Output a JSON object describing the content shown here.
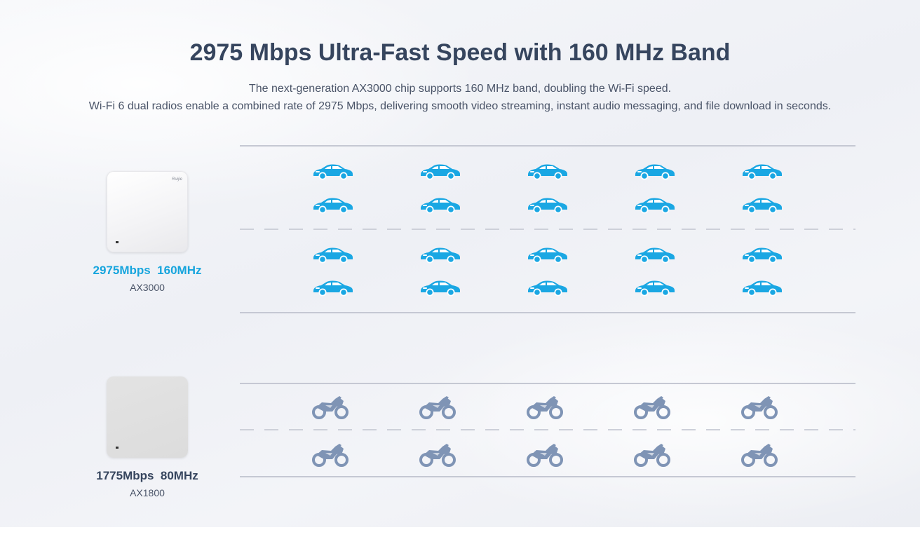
{
  "header": {
    "title": "2975 Mbps Ultra-Fast Speed with 160 MHz Band",
    "subtitle_line1": "The next-generation AX3000 chip supports 160 MHz band, doubling the Wi-Fi speed.",
    "subtitle_line2": "Wi-Fi 6 dual radios enable a combined rate of 2975 Mbps, delivering smooth video streaming, instant audio messaging, and file download in seconds."
  },
  "ax3000": {
    "spec": "2975Mbps  160MHz",
    "model": "AX3000",
    "brand_label": "Ruijie",
    "vehicle": "car-icon",
    "rows": 4,
    "vehicles_per_row": 5,
    "color": "#1aa7e3"
  },
  "ax1800": {
    "spec": "1775Mbps  80MHz",
    "model": "AX1800",
    "vehicle": "motorcycle-icon",
    "rows": 2,
    "vehicles_per_row": 5,
    "color": "#7f94b5"
  }
}
